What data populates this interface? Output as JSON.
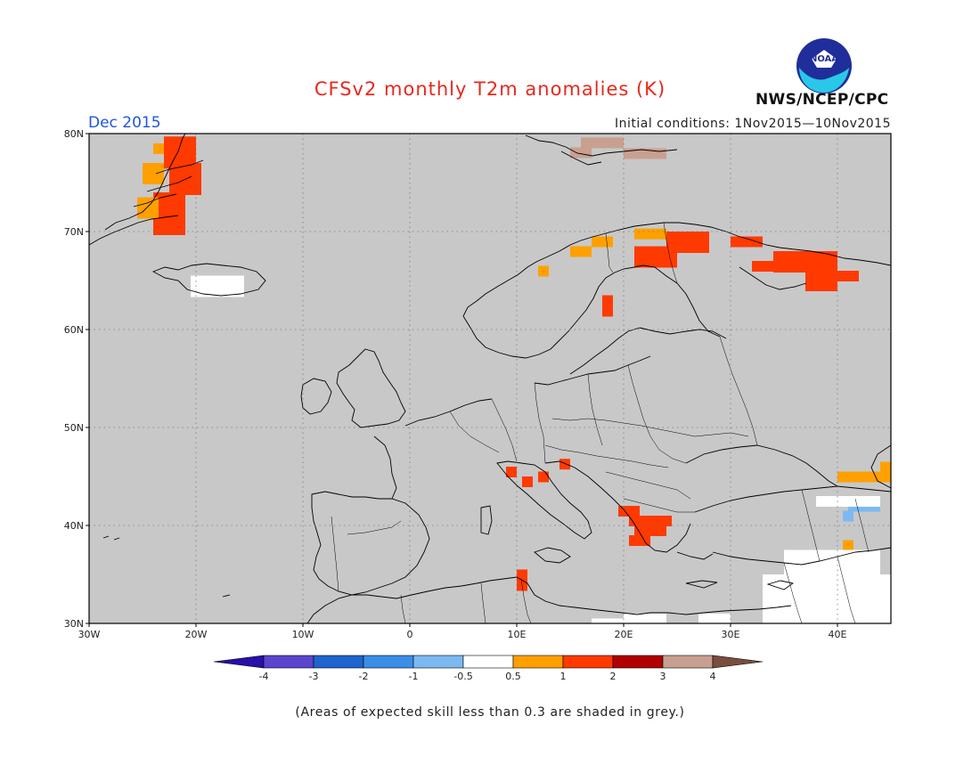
{
  "title": "CFSv2 monthly T2m anomalies (K)",
  "month_label": "Dec 2015",
  "agency": "NWS/NCEP/CPC",
  "logo_text": "NOAA",
  "initial_conditions": "Initial conditions: 1Nov2015—10Nov2015",
  "footnote": "(Areas of expected skill less than 0.3 are shaded in grey.)",
  "map": {
    "projection": "equirectangular",
    "lon_range": [
      -30,
      45
    ],
    "lat_range": [
      30,
      80
    ],
    "lat_ticks": [
      "30N",
      "40N",
      "50N",
      "60N",
      "70N",
      "80N"
    ],
    "lon_ticks": [
      "30W",
      "20W",
      "10W",
      "0",
      "10E",
      "20E",
      "30E",
      "40E"
    ],
    "grid": "dotted",
    "background_color": "#c8c8c8",
    "low_skill_note_color": "grey"
  },
  "colorbar": {
    "labels": [
      "-4",
      "-3",
      "-2",
      "-1",
      "-0.5",
      "0.5",
      "1",
      "2",
      "3",
      "4"
    ],
    "colors": [
      "#2a0fa8",
      "#5b45cf",
      "#1f64cf",
      "#3a8ee8",
      "#7cb9f2",
      "#ffffff",
      "#ffa000",
      "#ff3a00",
      "#b00000",
      "#c9a08f",
      "#7a4e3c"
    ]
  },
  "anomaly_regions": [
    {
      "name": "east greenland",
      "category": "1 to 2",
      "color": "#ff3a00"
    },
    {
      "name": "east greenland coast",
      "category": "0.5 to 1",
      "color": "#ffa000"
    },
    {
      "name": "svalbard",
      "category": "3 to 4",
      "color": "#c9a08f"
    },
    {
      "name": "northern scandinavia",
      "category": "1 to 2",
      "color": "#ff3a00"
    },
    {
      "name": "norway coast",
      "category": "0.5 to 1",
      "color": "#ffa000"
    },
    {
      "name": "kola / northwest russia",
      "category": "1 to 2",
      "color": "#ff3a00"
    },
    {
      "name": "northern alps",
      "category": "1 to 2",
      "color": "#ff3a00"
    },
    {
      "name": "balkans / greece",
      "category": "1 to 2",
      "color": "#ff3a00"
    },
    {
      "name": "tunisia",
      "category": "1 to 2",
      "color": "#ff3a00"
    },
    {
      "name": "caucasus north",
      "category": "0.5 to 1",
      "color": "#ffa000"
    },
    {
      "name": "caucasus",
      "category": "-1 to -0.5",
      "color": "#7cb9f2"
    },
    {
      "name": "iceland",
      "category": "-0.5 to 0.5",
      "color": "#ffffff"
    },
    {
      "name": "north africa / middle east",
      "category": "-0.5 to 0.5",
      "color": "#ffffff"
    }
  ]
}
